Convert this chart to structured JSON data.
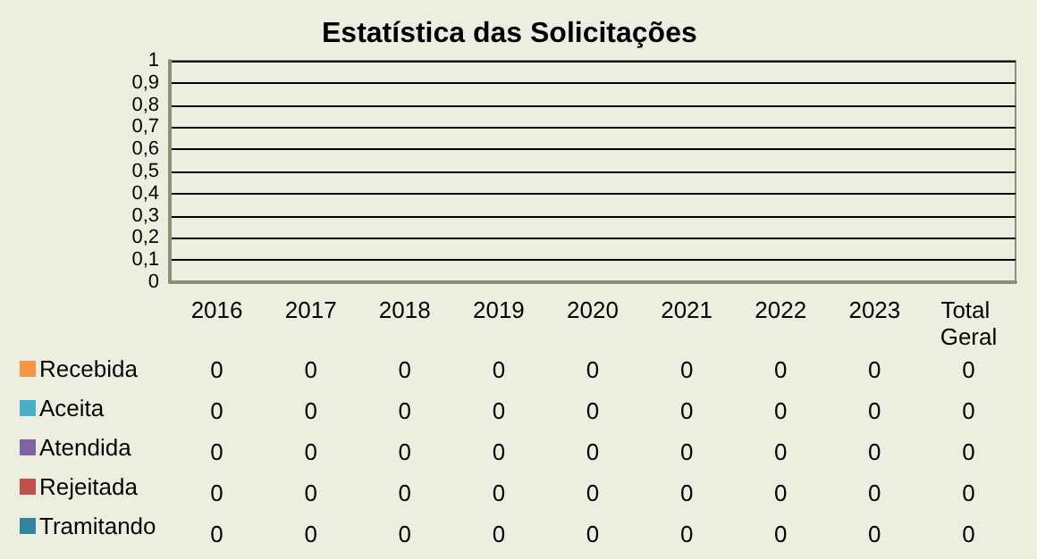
{
  "chart_data": {
    "type": "bar",
    "title": "Estatística das Solicitações",
    "categories": [
      "2016",
      "2017",
      "2018",
      "2019",
      "2020",
      "2021",
      "2022",
      "2023",
      "Total Geral"
    ],
    "series": [
      {
        "name": "Recebida",
        "color": "#f79646",
        "values": [
          0,
          0,
          0,
          0,
          0,
          0,
          0,
          0,
          0
        ]
      },
      {
        "name": "Aceita",
        "color": "#4bacc6",
        "values": [
          0,
          0,
          0,
          0,
          0,
          0,
          0,
          0,
          0
        ]
      },
      {
        "name": "Atendida",
        "color": "#8064a2",
        "values": [
          0,
          0,
          0,
          0,
          0,
          0,
          0,
          0,
          0
        ]
      },
      {
        "name": "Rejeitada",
        "color": "#c0504d",
        "values": [
          0,
          0,
          0,
          0,
          0,
          0,
          0,
          0,
          0
        ]
      },
      {
        "name": "Tramitando",
        "color": "#31859c",
        "values": [
          0,
          0,
          0,
          0,
          0,
          0,
          0,
          0,
          0
        ]
      }
    ],
    "ylim": [
      0,
      1
    ],
    "yticks": [
      {
        "value": 0,
        "label": "0"
      },
      {
        "value": 0.1,
        "label": "0,1"
      },
      {
        "value": 0.2,
        "label": "0,2"
      },
      {
        "value": 0.3,
        "label": "0,3"
      },
      {
        "value": 0.4,
        "label": "0,4"
      },
      {
        "value": 0.5,
        "label": "0,5"
      },
      {
        "value": 0.6,
        "label": "0,6"
      },
      {
        "value": 0.7,
        "label": "0,7"
      },
      {
        "value": 0.8,
        "label": "0,8"
      },
      {
        "value": 0.9,
        "label": "0,9"
      },
      {
        "value": 1,
        "label": "1"
      }
    ],
    "grid": "y",
    "legend": "bottom left",
    "data_labels": true
  }
}
